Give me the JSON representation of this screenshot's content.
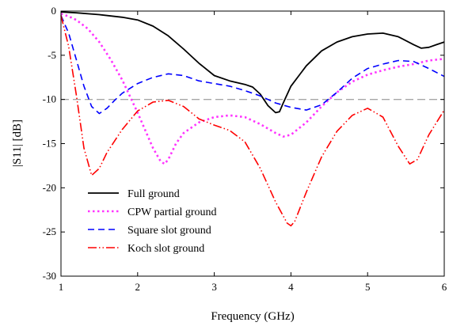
{
  "chart_data": {
    "type": "line",
    "xlabel": "Frequency (GHz)",
    "ylabel": "|S11| [dB]",
    "xlim": [
      1,
      6
    ],
    "ylim": [
      -30,
      0
    ],
    "xticks": [
      1,
      2,
      3,
      4,
      5,
      6
    ],
    "yticks": [
      0,
      -5,
      -10,
      -15,
      -20,
      -25,
      -30
    ],
    "reference_line": {
      "y": -10,
      "style": "dashed",
      "color": "#a6a6a6"
    },
    "legend_position": "lower-left",
    "grid": false,
    "series": [
      {
        "name": "Full ground",
        "color": "#000000",
        "dash": "solid",
        "x": [
          1.0,
          1.2,
          1.5,
          1.8,
          2.0,
          2.2,
          2.4,
          2.6,
          2.8,
          3.0,
          3.2,
          3.4,
          3.5,
          3.6,
          3.7,
          3.8,
          3.85,
          3.9,
          4.0,
          4.2,
          4.4,
          4.6,
          4.8,
          5.0,
          5.2,
          5.4,
          5.6,
          5.7,
          5.8,
          5.9,
          6.0
        ],
        "y": [
          -0.1,
          -0.2,
          -0.4,
          -0.7,
          -1.0,
          -1.7,
          -2.8,
          -4.3,
          -5.9,
          -7.3,
          -7.9,
          -8.3,
          -8.6,
          -9.4,
          -10.7,
          -11.5,
          -11.4,
          -10.4,
          -8.5,
          -6.2,
          -4.5,
          -3.5,
          -2.9,
          -2.6,
          -2.5,
          -2.9,
          -3.8,
          -4.2,
          -4.1,
          -3.8,
          -3.5
        ]
      },
      {
        "name": "CPW partial ground",
        "color": "#ff33ff",
        "dash": "dot",
        "x": [
          1.0,
          1.1,
          1.2,
          1.35,
          1.5,
          1.65,
          1.8,
          2.0,
          2.1,
          2.2,
          2.3,
          2.35,
          2.4,
          2.5,
          2.6,
          2.8,
          3.0,
          3.2,
          3.4,
          3.6,
          3.8,
          3.9,
          4.0,
          4.2,
          4.4,
          4.6,
          4.8,
          5.0,
          5.2,
          5.4,
          5.6,
          5.8,
          6.0
        ],
        "y": [
          -0.3,
          -0.6,
          -1.0,
          -2.0,
          -3.5,
          -5.5,
          -7.8,
          -11.5,
          -13.5,
          -15.5,
          -17.0,
          -17.3,
          -16.8,
          -15.0,
          -13.8,
          -12.6,
          -12.0,
          -11.8,
          -12.0,
          -12.8,
          -13.8,
          -14.2,
          -14.0,
          -12.6,
          -10.8,
          -9.2,
          -8.0,
          -7.2,
          -6.7,
          -6.3,
          -6.0,
          -5.6,
          -5.4
        ]
      },
      {
        "name": "Square slot ground",
        "color": "#0000ff",
        "dash": "dash",
        "x": [
          1.0,
          1.1,
          1.2,
          1.3,
          1.4,
          1.5,
          1.6,
          1.7,
          1.8,
          2.0,
          2.2,
          2.4,
          2.6,
          2.8,
          3.0,
          3.2,
          3.4,
          3.6,
          3.8,
          4.0,
          4.2,
          4.4,
          4.6,
          4.8,
          5.0,
          5.2,
          5.4,
          5.6,
          5.8,
          6.0
        ],
        "y": [
          -0.5,
          -2.5,
          -5.5,
          -8.5,
          -10.8,
          -11.6,
          -11.0,
          -10.1,
          -9.3,
          -8.2,
          -7.5,
          -7.1,
          -7.3,
          -7.9,
          -8.2,
          -8.5,
          -9.0,
          -9.6,
          -10.4,
          -10.9,
          -11.2,
          -10.6,
          -9.2,
          -7.6,
          -6.5,
          -6.0,
          -5.6,
          -5.7,
          -6.5,
          -7.4
        ]
      },
      {
        "name": "Koch slot ground",
        "color": "#ff0000",
        "dash": "dashdotdot",
        "x": [
          1.0,
          1.1,
          1.2,
          1.3,
          1.4,
          1.5,
          1.6,
          1.8,
          2.0,
          2.2,
          2.4,
          2.6,
          2.8,
          3.0,
          3.2,
          3.4,
          3.6,
          3.8,
          3.95,
          4.0,
          4.05,
          4.2,
          4.4,
          4.6,
          4.8,
          5.0,
          5.2,
          5.4,
          5.55,
          5.65,
          5.8,
          6.0
        ],
        "y": [
          -0.5,
          -4.0,
          -9.5,
          -15.5,
          -18.6,
          -17.8,
          -16.0,
          -13.4,
          -11.3,
          -10.3,
          -10.1,
          -10.8,
          -12.2,
          -12.9,
          -13.5,
          -14.8,
          -17.8,
          -21.6,
          -24.0,
          -24.3,
          -23.8,
          -20.5,
          -16.5,
          -13.6,
          -11.8,
          -11.0,
          -12.0,
          -15.3,
          -17.3,
          -16.8,
          -14.0,
          -11.2
        ]
      }
    ]
  }
}
